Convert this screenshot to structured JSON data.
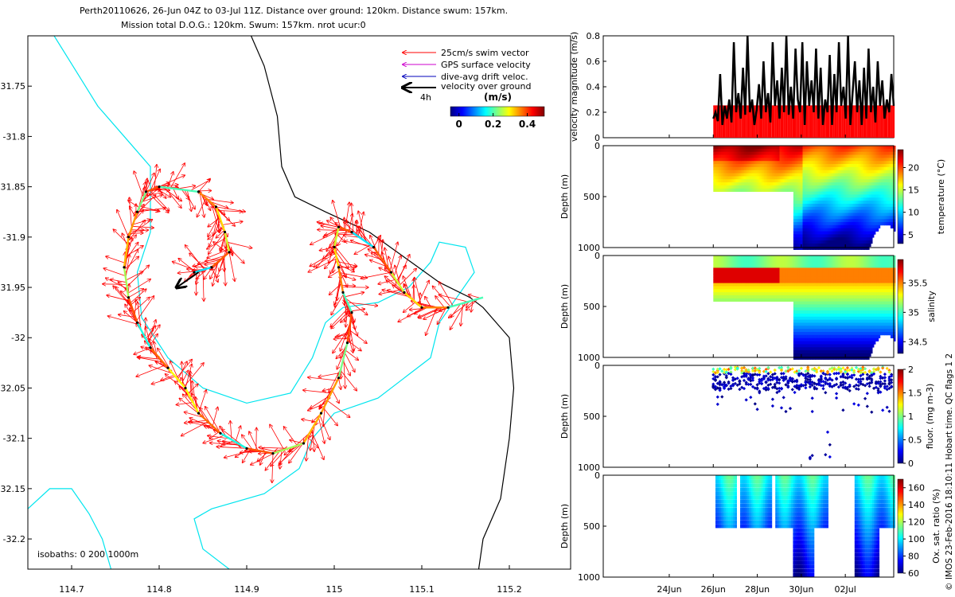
{
  "header": {
    "line1": "Perth20110626, 26-Jun 04Z to 03-Jul 11Z. Distance over ground: 120km. Distance swum: 157km.",
    "line2": "Mission total D.O.G.: 120km. Swum: 157km. nrot ucur:0"
  },
  "side_note": "© IMOS 23-Feb-2016 18:10:11 Hobart time. QC flags 1  2",
  "colors": {
    "swim": "#ff0000",
    "gps": "#cc00cc",
    "dive": "#0000bb",
    "ground": "#000000",
    "coast": "#000000",
    "isobath": "#00e5ee",
    "bar": "#ff0000"
  },
  "chart_data": [
    {
      "id": "map",
      "type": "scatter",
      "xlim": [
        114.65,
        115.27
      ],
      "ylim": [
        -32.23,
        -31.7
      ],
      "xticks": [
        114.7,
        114.8,
        114.9,
        115,
        115.1,
        115.2
      ],
      "xtick_labels": [
        "114.7",
        "114.8",
        "114.9",
        "115",
        "115.1",
        "115.2"
      ],
      "yticks": [
        -31.75,
        -31.8,
        -31.85,
        -31.9,
        -31.95,
        -32,
        -32.05,
        -32.1,
        -32.15,
        -32.2
      ],
      "ytick_labels": [
        "31.75",
        "-31.8",
        "31.85",
        "-31.9",
        "31.95",
        "-32",
        "32.05",
        "-32.1",
        "32.15",
        "-32.2"
      ],
      "legend": {
        "position": "top-right",
        "entries": [
          {
            "label": "25cm/s swim vector",
            "color": "#ff0000"
          },
          {
            "label": "GPS surface velocity",
            "color": "#cc00cc"
          },
          {
            "label": "dive-avg drift veloc.",
            "color": "#0000bb"
          },
          {
            "label": "velocity over ground",
            "color": "#000000"
          }
        ],
        "time_label": "4h"
      },
      "colorbar": {
        "title": "(m/s)",
        "range": [
          -0.05,
          0.5
        ],
        "ticks": [
          0,
          0.2,
          0.4
        ],
        "tick_labels": [
          "0",
          "0.2",
          "0.4"
        ]
      },
      "isobath_label": "isobaths: 0   200   1000m",
      "track": [
        [
          114.84,
          -31.935
        ],
        [
          114.86,
          -31.93
        ],
        [
          114.88,
          -31.915
        ],
        [
          114.875,
          -31.895
        ],
        [
          114.865,
          -31.87
        ],
        [
          114.845,
          -31.855
        ],
        [
          114.8,
          -31.85
        ],
        [
          114.785,
          -31.855
        ],
        [
          114.775,
          -31.875
        ],
        [
          114.765,
          -31.9
        ],
        [
          114.76,
          -31.93
        ],
        [
          114.765,
          -31.96
        ],
        [
          114.775,
          -31.985
        ],
        [
          114.79,
          -32.01
        ],
        [
          114.81,
          -32.03
        ],
        [
          114.83,
          -32.05
        ],
        [
          114.845,
          -32.075
        ],
        [
          114.87,
          -32.095
        ],
        [
          114.9,
          -32.11
        ],
        [
          114.93,
          -32.115
        ],
        [
          114.965,
          -32.105
        ],
        [
          114.985,
          -32.075
        ],
        [
          115.005,
          -32.04
        ],
        [
          115.015,
          -32.005
        ],
        [
          115.02,
          -31.975
        ],
        [
          115.01,
          -31.955
        ],
        [
          115.005,
          -31.93
        ],
        [
          115.0,
          -31.91
        ],
        [
          115.005,
          -31.89
        ],
        [
          115.02,
          -31.895
        ],
        [
          115.045,
          -31.91
        ],
        [
          115.065,
          -31.935
        ],
        [
          115.08,
          -31.955
        ],
        [
          115.1,
          -31.97
        ],
        [
          115.13,
          -31.97
        ],
        [
          115.17,
          -31.96
        ]
      ],
      "ground_vector": [
        [
          114.845,
          -31.935
        ],
        [
          114.82,
          -31.95
        ]
      ],
      "isobath_0": [
        [
          114.905,
          -31.7
        ],
        [
          114.92,
          -31.73
        ],
        [
          114.935,
          -31.78
        ],
        [
          114.94,
          -31.83
        ],
        [
          114.955,
          -31.86
        ],
        [
          114.99,
          -31.875
        ],
        [
          115.04,
          -31.895
        ],
        [
          115.08,
          -31.92
        ],
        [
          115.12,
          -31.945
        ],
        [
          115.155,
          -31.96
        ],
        [
          115.17,
          -31.97
        ],
        [
          115.2,
          -32.0
        ],
        [
          115.205,
          -32.05
        ],
        [
          115.2,
          -32.1
        ],
        [
          115.19,
          -32.16
        ],
        [
          115.17,
          -32.2
        ],
        [
          115.165,
          -32.23
        ]
      ],
      "isobath_200": [
        [
          114.68,
          -31.7
        ],
        [
          114.705,
          -31.735
        ],
        [
          114.73,
          -31.77
        ],
        [
          114.765,
          -31.805
        ],
        [
          114.79,
          -31.83
        ],
        [
          114.79,
          -31.86
        ],
        [
          114.79,
          -31.895
        ],
        [
          114.775,
          -31.935
        ],
        [
          114.78,
          -31.98
        ],
        [
          114.81,
          -32.02
        ],
        [
          114.85,
          -32.05
        ],
        [
          114.9,
          -32.065
        ],
        [
          114.95,
          -32.055
        ],
        [
          114.975,
          -32.02
        ],
        [
          114.99,
          -31.985
        ],
        [
          115.01,
          -31.97
        ],
        [
          115.05,
          -31.965
        ],
        [
          115.085,
          -31.95
        ],
        [
          115.11,
          -31.925
        ],
        [
          115.12,
          -31.905
        ],
        [
          115.15,
          -31.91
        ],
        [
          115.16,
          -31.935
        ],
        [
          115.14,
          -31.96
        ],
        [
          115.12,
          -31.985
        ],
        [
          115.11,
          -32.02
        ],
        [
          115.08,
          -32.04
        ],
        [
          115.05,
          -32.06
        ],
        [
          115.0,
          -32.075
        ],
        [
          114.975,
          -32.1
        ],
        [
          114.96,
          -32.13
        ],
        [
          114.92,
          -32.155
        ],
        [
          114.86,
          -32.17
        ],
        [
          114.84,
          -32.18
        ],
        [
          114.85,
          -32.21
        ],
        [
          114.88,
          -32.23
        ]
      ],
      "isobath_1000": [
        [
          114.65,
          -32.17
        ],
        [
          114.675,
          -32.15
        ],
        [
          114.7,
          -32.15
        ],
        [
          114.72,
          -32.175
        ],
        [
          114.735,
          -32.2
        ],
        [
          114.745,
          -32.23
        ]
      ]
    },
    {
      "id": "velocity",
      "type": "bar",
      "ylabel": "velocity magnitude (m/s)",
      "ylim": [
        0,
        0.8
      ],
      "yticks": [
        0,
        0.2,
        0.4,
        0.6,
        0.8
      ],
      "tick_labels": [
        "0",
        "0.2",
        "0.4",
        "0.6",
        "0.8"
      ],
      "x_range_days": [
        21.0,
        34.2
      ],
      "data_start_day": 26.0,
      "data_end_day": 34.2,
      "swim_speed": 0.25,
      "line_values": [
        0.15,
        0.2,
        0.13,
        0.5,
        0.1,
        0.25,
        0.15,
        0.3,
        0.12,
        0.75,
        0.2,
        0.35,
        0.15,
        0.55,
        0.18,
        0.8,
        0.2,
        0.3,
        0.1,
        0.22,
        0.42,
        0.15,
        0.6,
        0.2,
        0.35,
        0.12,
        0.75,
        0.25,
        0.45,
        0.15,
        0.55,
        0.2,
        0.8,
        0.18,
        0.4,
        0.15,
        0.7,
        0.3,
        0.2,
        0.75,
        0.1,
        0.6,
        0.25,
        0.45,
        0.2,
        0.7,
        0.15,
        0.55,
        0.1,
        0.3,
        0.2,
        0.65,
        0.1,
        0.5,
        0.2,
        0.75,
        0.25,
        0.4,
        0.15,
        0.8,
        0.1,
        0.35,
        0.6,
        0.2,
        0.45,
        0.1,
        0.55,
        0.15,
        0.7,
        0.2,
        0.4,
        0.12,
        0.6,
        0.25,
        0.45,
        0.15,
        0.3,
        0.2,
        0.5,
        0.25
      ]
    },
    {
      "id": "temperature",
      "type": "heatmap",
      "ylabel": "Depth (m)",
      "cbar_label": "temperature (°C)",
      "ylim": [
        0,
        1000
      ],
      "yticks": [
        0,
        500,
        1000
      ],
      "tick_labels": [
        "0",
        "500",
        "1000"
      ],
      "crange": [
        3,
        24
      ],
      "cticks": [
        5,
        10,
        15,
        20
      ],
      "ctick_labels": [
        "5",
        "10",
        "15",
        "20"
      ],
      "x_range_days": [
        21.0,
        34.2
      ],
      "data_start_day": 26.0,
      "deep_start_day": 29.6,
      "shallow_max": 450,
      "deep_max": 1000
    },
    {
      "id": "salinity",
      "type": "heatmap",
      "ylabel": "Depth (m)",
      "cbar_label": "salinity",
      "ylim": [
        0,
        1000
      ],
      "yticks": [
        0,
        500,
        1000
      ],
      "tick_labels": [
        "0",
        "500",
        "1000"
      ],
      "crange": [
        34.3,
        35.9
      ],
      "cticks": [
        34.5,
        35,
        35.5
      ],
      "ctick_labels": [
        "34.5",
        "35",
        "35.5"
      ],
      "x_range_days": [
        21.0,
        34.2
      ],
      "data_start_day": 26.0,
      "deep_start_day": 29.6,
      "shallow_max": 450,
      "deep_max": 1000
    },
    {
      "id": "fluorescence",
      "type": "scatter",
      "ylabel": "Depth (m)",
      "cbar_label": "fluor. (mg m-3)",
      "ylim": [
        0,
        1000
      ],
      "yticks": [
        0,
        500,
        1000
      ],
      "tick_labels": [
        "0",
        "500",
        "1000"
      ],
      "crange": [
        0,
        2
      ],
      "cticks": [
        0,
        0.5,
        1,
        1.5,
        2
      ],
      "ctick_labels": [
        "0",
        "0.5",
        "1",
        "1.5",
        "2"
      ],
      "x_range_days": [
        21.0,
        34.2
      ],
      "data_start_day": 26.0
    },
    {
      "id": "oxygen",
      "type": "heatmap",
      "ylabel": "Depth (m)",
      "cbar_label": "Ox. sat. ratio (%)",
      "ylim": [
        0,
        1000
      ],
      "yticks": [
        0,
        500,
        1000
      ],
      "tick_labels": [
        "0",
        "500",
        "1000"
      ],
      "crange": [
        60,
        170
      ],
      "cticks": [
        60,
        80,
        100,
        120,
        140,
        160
      ],
      "ctick_labels": [
        "60",
        "80",
        "100",
        "120",
        "140",
        "160"
      ],
      "x_range_days": [
        21.0,
        34.2
      ],
      "data_start_day": 26.0
    }
  ],
  "time_axis": {
    "ticks": [
      24,
      26,
      28,
      30,
      32
    ],
    "labels": [
      "24Jun",
      "26Jun",
      "28Jun",
      "30Jun",
      "02Jul"
    ]
  }
}
